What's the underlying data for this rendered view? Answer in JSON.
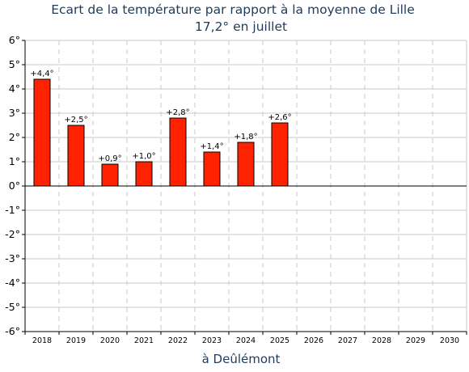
{
  "chart_data": {
    "type": "bar",
    "title": "Ecart de la température par rapport à la moyenne de Lille",
    "subtitle": "17,2° en juillet",
    "xlabel": "à Deûlémont",
    "ylabel": "",
    "ylim": [
      -6,
      6
    ],
    "yticks": [
      6,
      5,
      4,
      3,
      2,
      1,
      0,
      -1,
      -2,
      -3,
      -4,
      -5,
      -6
    ],
    "ytick_labels": [
      "6°",
      "5°",
      "4°",
      "3°",
      "2°",
      "1°",
      "0°",
      "-1°",
      "-2°",
      "-3°",
      "-4°",
      "-5°",
      "-6°"
    ],
    "categories": [
      "2018",
      "2019",
      "2020",
      "2021",
      "2022",
      "2023",
      "2024",
      "2025",
      "2026",
      "2027",
      "2028",
      "2029",
      "2030"
    ],
    "values": [
      4.4,
      2.5,
      0.9,
      1.0,
      2.8,
      1.4,
      1.8,
      2.6,
      null,
      null,
      null,
      null,
      null
    ],
    "data_labels": [
      "+4,4°",
      "+2,5°",
      "+0,9°",
      "+1,0°",
      "+2,8°",
      "+1,4°",
      "+1,8°",
      "+2,6°",
      "",
      "",
      "",
      "",
      ""
    ],
    "grid": true,
    "legend": "none",
    "colors": {
      "bar": "#ff2200",
      "bar_edge": "#000000",
      "title": "#1f3b5c",
      "grid_h": "#c8c8c8",
      "grid_v": "#c8c8c8"
    }
  }
}
